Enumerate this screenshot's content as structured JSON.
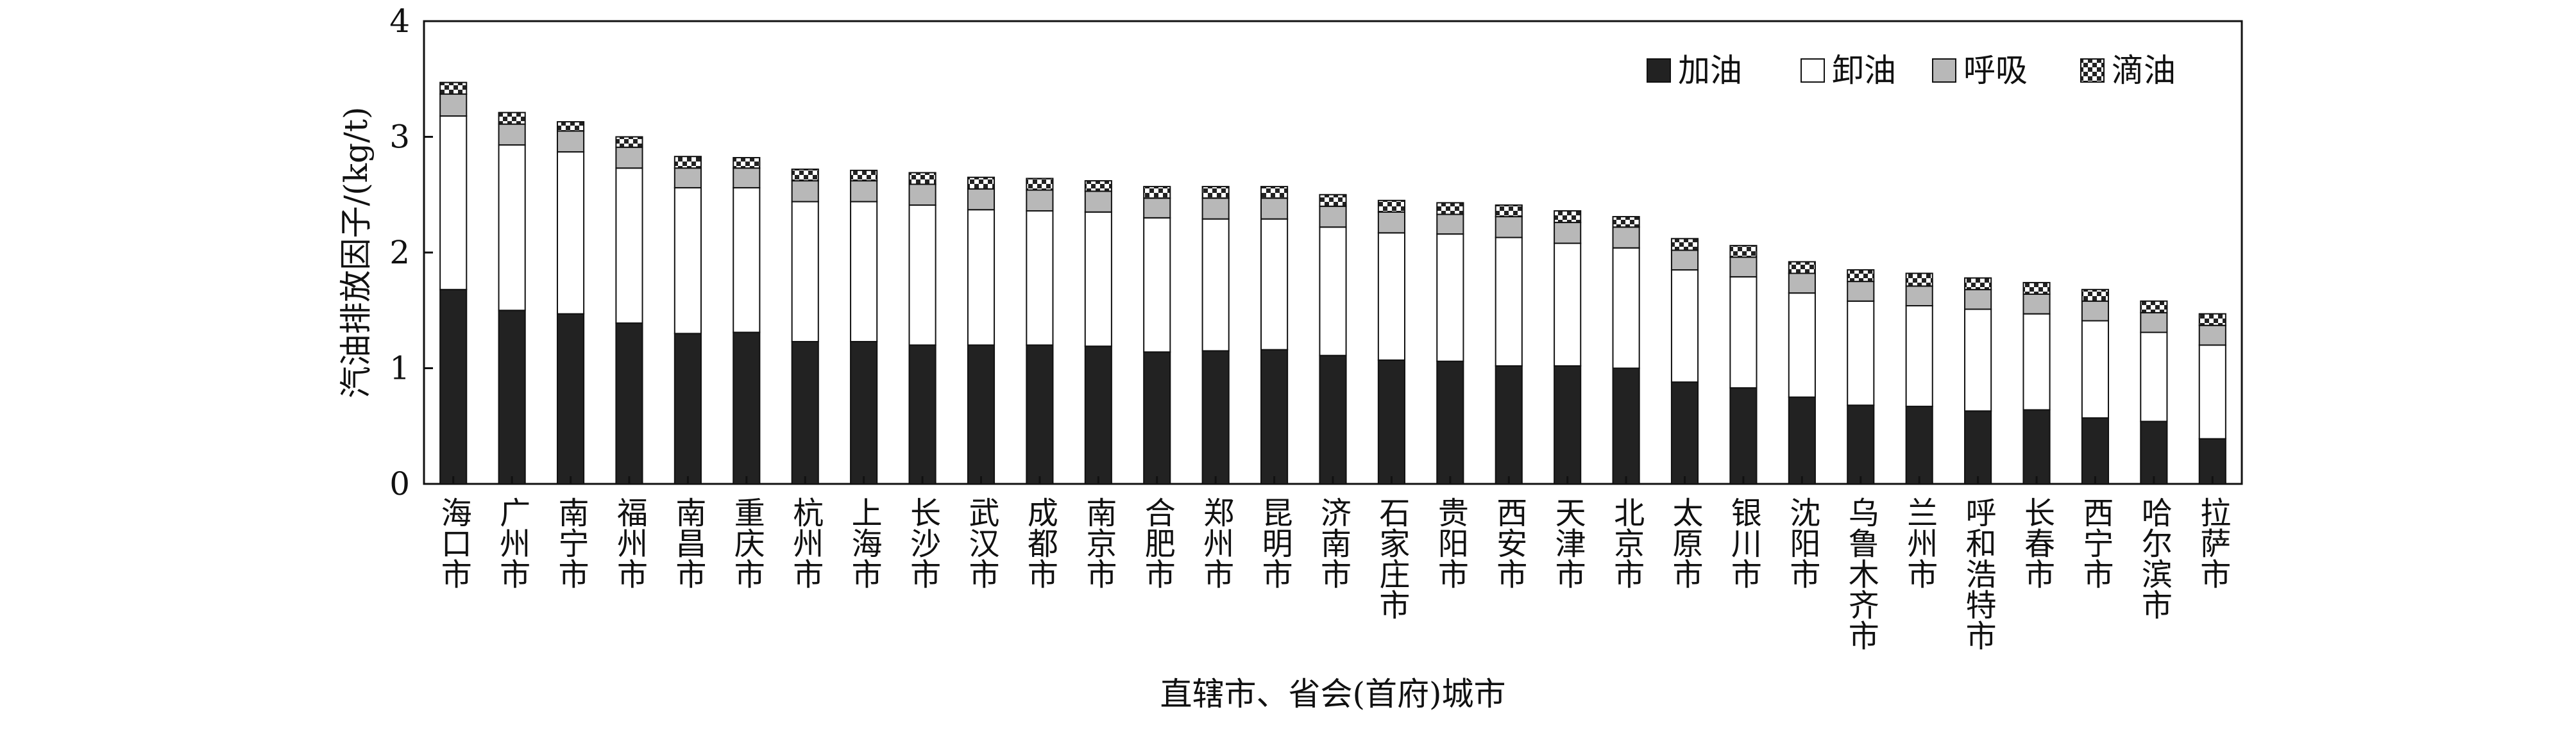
{
  "chart_data": {
    "type": "stacked_bar",
    "y_label": "汽油排放因子/(kg/t)",
    "x_label": "直辖市、省会(首府)城市",
    "categories": [
      "海口市",
      "广州市",
      "南宁市",
      "福州市",
      "南昌市",
      "重庆市",
      "杭州市",
      "上海市",
      "长沙市",
      "武汉市",
      "成都市",
      "南京市",
      "合肥市",
      "郑州市",
      "昆明市",
      "济南市",
      "石家庄市",
      "贵阳市",
      "西安市",
      "天津市",
      "北京市",
      "太原市",
      "银川市",
      "沈阳市",
      "乌鲁木齐市",
      "兰州市",
      "呼和浩特市",
      "长春市",
      "西宁市",
      "哈尔滨市",
      "拉萨市"
    ],
    "series": [
      {
        "name": "加油",
        "color": "#222222",
        "values": [
          1.68,
          1.5,
          1.47,
          1.39,
          1.3,
          1.31,
          1.23,
          1.23,
          1.2,
          1.2,
          1.2,
          1.19,
          1.14,
          1.15,
          1.16,
          1.11,
          1.07,
          1.06,
          1.02,
          1.02,
          1.0,
          0.88,
          0.83,
          0.75,
          0.68,
          0.67,
          0.63,
          0.64,
          0.57,
          0.54,
          0.39
        ]
      },
      {
        "name": "卸油",
        "color": "#ffffff",
        "values": [
          1.5,
          1.43,
          1.4,
          1.34,
          1.26,
          1.25,
          1.21,
          1.21,
          1.21,
          1.17,
          1.16,
          1.16,
          1.16,
          1.14,
          1.13,
          1.11,
          1.1,
          1.1,
          1.11,
          1.06,
          1.04,
          0.97,
          0.96,
          0.9,
          0.9,
          0.87,
          0.88,
          0.83,
          0.84,
          0.77,
          0.81
        ]
      },
      {
        "name": "呼吸",
        "color": "#b8b8b8",
        "values": [
          0.19,
          0.18,
          0.18,
          0.18,
          0.17,
          0.17,
          0.18,
          0.18,
          0.18,
          0.18,
          0.18,
          0.18,
          0.17,
          0.18,
          0.18,
          0.18,
          0.18,
          0.17,
          0.18,
          0.18,
          0.18,
          0.17,
          0.17,
          0.17,
          0.17,
          0.17,
          0.17,
          0.17,
          0.17,
          0.17,
          0.17
        ]
      },
      {
        "name": "滴油",
        "color": "#ffffff",
        "pattern": "checker",
        "values": [
          0.1,
          0.1,
          0.08,
          0.09,
          0.1,
          0.09,
          0.1,
          0.09,
          0.1,
          0.1,
          0.1,
          0.09,
          0.1,
          0.1,
          0.1,
          0.1,
          0.1,
          0.1,
          0.1,
          0.1,
          0.09,
          0.1,
          0.1,
          0.1,
          0.1,
          0.11,
          0.1,
          0.1,
          0.1,
          0.1,
          0.1
        ]
      }
    ],
    "ylim": [
      0,
      4
    ],
    "yticks": [
      0,
      1,
      2,
      3,
      4
    ],
    "legend": "upper-right"
  }
}
